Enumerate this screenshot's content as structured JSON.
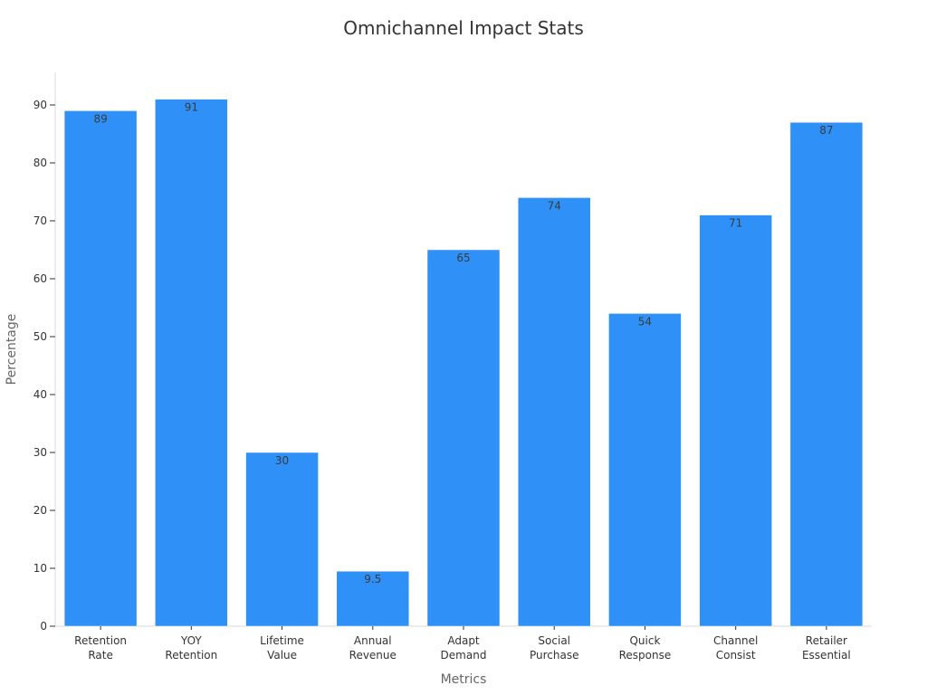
{
  "chart_data": {
    "type": "bar",
    "title": "Omnichannel Impact Stats",
    "xlabel": "Metrics",
    "ylabel": "Percentage",
    "categories": [
      [
        "Retention",
        "Rate"
      ],
      [
        "YOY",
        "Retention"
      ],
      [
        "Lifetime",
        "Value"
      ],
      [
        "Annual",
        "Revenue"
      ],
      [
        "Adapt",
        "Demand"
      ],
      [
        "Social",
        "Purchase"
      ],
      [
        "Quick",
        "Response"
      ],
      [
        "Channel",
        "Consist"
      ],
      [
        "Retailer",
        "Essential"
      ]
    ],
    "values": [
      89,
      91,
      30,
      9.5,
      65,
      74,
      54,
      71,
      87
    ],
    "data_labels": [
      "89",
      "91",
      "30",
      "9.5",
      "65",
      "74",
      "54",
      "71",
      "87"
    ],
    "ylim": [
      0,
      95
    ],
    "yticks": [
      0,
      10,
      20,
      30,
      40,
      50,
      60,
      70,
      80,
      90
    ],
    "grid": false,
    "legend": "none",
    "bar_color": "#2f91f7"
  }
}
